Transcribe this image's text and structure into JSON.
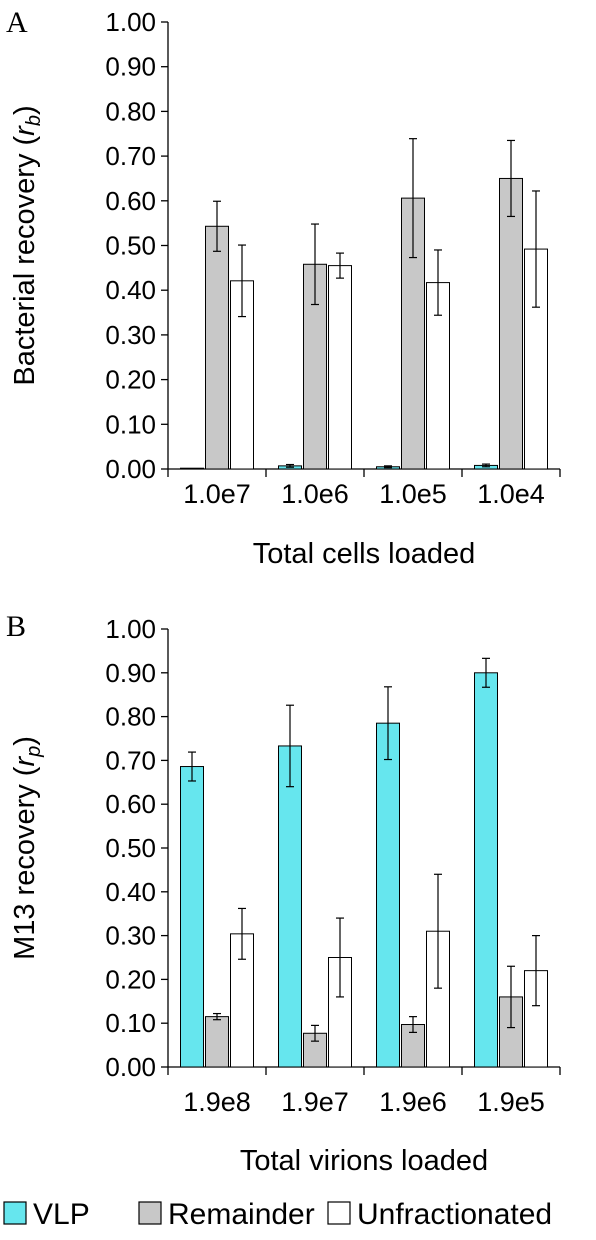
{
  "colors": {
    "VLP": "#66e6ee",
    "Remainder": "#c8c8c8",
    "Unfractionated": "#ffffff",
    "stroke": "#000000"
  },
  "legend": {
    "position": "bottom",
    "items": [
      {
        "label": "VLP",
        "color": "#66e6ee"
      },
      {
        "label": "Remainder",
        "color": "#c8c8c8"
      },
      {
        "label": "Unfractionated",
        "color": "#ffffff"
      }
    ]
  },
  "chart_data": [
    {
      "type": "bar",
      "panel": "A",
      "categories": [
        "1.0e7",
        "1.0e6",
        "1.0e5",
        "1.0e4"
      ],
      "xlabel": "Total cells loaded",
      "ylabel_main": "Bacterial recovery (",
      "ylabel_var": "r",
      "ylabel_sub": "b",
      "ylabel_end": ")",
      "ylim": [
        0,
        1
      ],
      "yticks": [
        "0.00",
        "0.10",
        "0.20",
        "0.30",
        "0.40",
        "0.50",
        "0.60",
        "0.70",
        "0.80",
        "0.90",
        "1.00"
      ],
      "grid": false,
      "series": [
        {
          "name": "VLP",
          "values": [
            0.001,
            0.007,
            0.005,
            0.008
          ],
          "errors": [
            0.0,
            0.003,
            0.002,
            0.003
          ]
        },
        {
          "name": "Remainder",
          "values": [
            0.543,
            0.458,
            0.606,
            0.65
          ],
          "errors": [
            0.056,
            0.09,
            0.133,
            0.085
          ]
        },
        {
          "name": "Unfractionated",
          "values": [
            0.421,
            0.455,
            0.417,
            0.492
          ],
          "errors": [
            0.08,
            0.028,
            0.073,
            0.13
          ]
        }
      ]
    },
    {
      "type": "bar",
      "panel": "B",
      "categories": [
        "1.9e8",
        "1.9e7",
        "1.9e6",
        "1.9e5"
      ],
      "xlabel": "Total virions loaded",
      "ylabel_main": "M13 recovery (",
      "ylabel_var": "r",
      "ylabel_sub": "p",
      "ylabel_end": ")",
      "ylim": [
        0,
        1
      ],
      "yticks": [
        "0.00",
        "0.10",
        "0.20",
        "0.30",
        "0.40",
        "0.50",
        "0.60",
        "0.70",
        "0.80",
        "0.90",
        "1.00"
      ],
      "grid": false,
      "series": [
        {
          "name": "VLP",
          "values": [
            0.686,
            0.733,
            0.785,
            0.9
          ],
          "errors": [
            0.033,
            0.093,
            0.083,
            0.033
          ]
        },
        {
          "name": "Remainder",
          "values": [
            0.115,
            0.077,
            0.097,
            0.16
          ],
          "errors": [
            0.007,
            0.018,
            0.018,
            0.07
          ]
        },
        {
          "name": "Unfractionated",
          "values": [
            0.304,
            0.25,
            0.31,
            0.22
          ],
          "errors": [
            0.058,
            0.09,
            0.13,
            0.08
          ]
        }
      ]
    }
  ]
}
